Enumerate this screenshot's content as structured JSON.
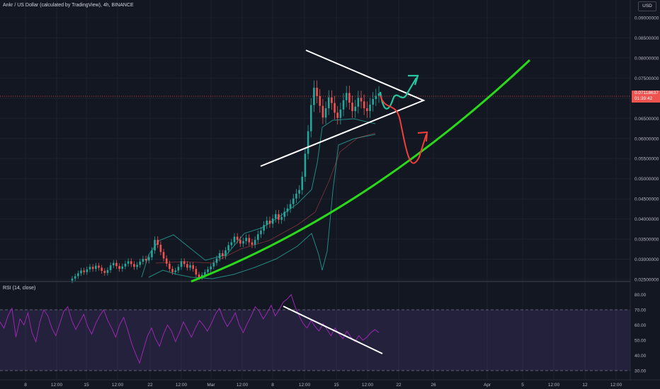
{
  "header": {
    "symbol_line": "Ankr / US Dollar (calculated by TradingView), 4h, BINANCE",
    "currency": "USD"
  },
  "last_price": {
    "value": "0.07118637",
    "countdown": "01:39:42"
  },
  "rsi_header": "RSI (14, close)",
  "colors": {
    "background": "#131722",
    "up": "#26a69a",
    "down": "#ef5350",
    "bollinger_band": "#26a69a",
    "rsi_line": "#9c27b0",
    "rsi_zone": "#7e57c2",
    "trend_curve": "#2bd91b",
    "triangle": "#ffffff",
    "projection_up": "#26c6a0",
    "projection_down": "#f23f3a"
  },
  "chart_data": [
    {
      "type": "candlestick",
      "ylim": [
        0.025,
        0.09
      ],
      "y_ticks": [
        "0.09000000",
        "0.08500000",
        "0.08000000",
        "0.07500000",
        "0.07000000",
        "0.06500000",
        "0.06000000",
        "0.05500000",
        "0.05000000",
        "0.04500000",
        "0.04000000",
        "0.03500000",
        "0.03000000",
        "0.02500000"
      ],
      "x_ticks": [
        "8",
        "12:00",
        "15",
        "12:00",
        "22",
        "12:00",
        "Mar",
        "12:00",
        "8",
        "12:00",
        "15",
        "12:00",
        "22",
        "26",
        "Apr",
        "5",
        "12:00",
        "12",
        "12:00"
      ],
      "closes": [
        0.0252,
        0.0258,
        0.0265,
        0.0272,
        0.0268,
        0.0275,
        0.0281,
        0.0276,
        0.0284,
        0.0279,
        0.0271,
        0.0266,
        0.0273,
        0.0285,
        0.0291,
        0.0283,
        0.0276,
        0.0282,
        0.0289,
        0.0295,
        0.0288,
        0.0281,
        0.0286,
        0.0294,
        0.0301,
        0.0297,
        0.0305,
        0.0322,
        0.0348,
        0.0336,
        0.0318,
        0.0302,
        0.0289,
        0.0276,
        0.0268,
        0.0272,
        0.0281,
        0.0295,
        0.0288,
        0.0279,
        0.0285,
        0.0276,
        0.0262,
        0.0255,
        0.0261,
        0.0268,
        0.0275,
        0.0282,
        0.0291,
        0.0302,
        0.0315,
        0.0308,
        0.0322,
        0.0335,
        0.0342,
        0.0356,
        0.0348,
        0.0339,
        0.0345,
        0.0353,
        0.0342,
        0.0336,
        0.0348,
        0.0362,
        0.0371,
        0.0385,
        0.0396,
        0.0388,
        0.0401,
        0.0412,
        0.0398,
        0.0405,
        0.0418,
        0.0426,
        0.0437,
        0.0451,
        0.0463,
        0.0472,
        0.0505,
        0.0562,
        0.0618,
        0.0683,
        0.0726,
        0.0705,
        0.0681,
        0.0652,
        0.0675,
        0.0702,
        0.0688,
        0.0664,
        0.0651,
        0.0672,
        0.0695,
        0.0713,
        0.0689,
        0.0668,
        0.0679,
        0.0701,
        0.0692,
        0.0675,
        0.0668,
        0.0684,
        0.0698,
        0.0706,
        0.0712
      ]
    },
    {
      "type": "line",
      "name": "RSI (14, close)",
      "ylim": [
        28,
        84
      ],
      "y_ticks": [
        "80.00",
        "70.00",
        "60.00",
        "50.00",
        "40.00",
        "30.00"
      ],
      "bands": [
        30,
        70
      ],
      "values": [
        62,
        58,
        66,
        71,
        52,
        64,
        60,
        68,
        55,
        49,
        62,
        70,
        66,
        58,
        53,
        61,
        69,
        72,
        63,
        57,
        62,
        67,
        59,
        54,
        61,
        66,
        70,
        63,
        58,
        52,
        60,
        65,
        57,
        48,
        41,
        35,
        44,
        53,
        58,
        51,
        46,
        54,
        60,
        56,
        49,
        55,
        62,
        57,
        52,
        58,
        63,
        60,
        56,
        61,
        67,
        71,
        64,
        59,
        63,
        68,
        60,
        55,
        61,
        66,
        72,
        69,
        64,
        68,
        73,
        66,
        70,
        75,
        77,
        80,
        72,
        66,
        61,
        58,
        63,
        59,
        56,
        61,
        57,
        53,
        58,
        54,
        51,
        56,
        52,
        49,
        53,
        50,
        52,
        55,
        57,
        55
      ]
    }
  ]
}
